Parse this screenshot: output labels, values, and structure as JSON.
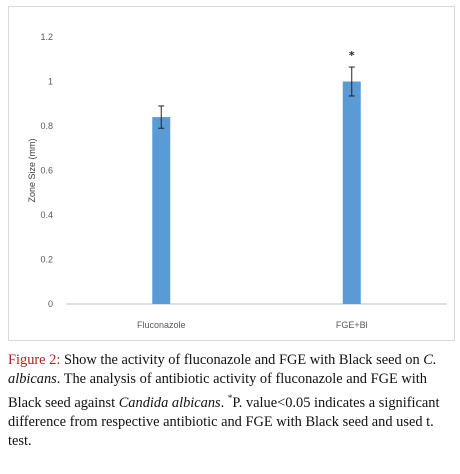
{
  "chart_data": {
    "type": "bar",
    "categories": [
      "Fluconazole",
      "FGE+Bl"
    ],
    "values": [
      0.84,
      1.0
    ],
    "errors": [
      0.05,
      0.065
    ],
    "significance": [
      "",
      "*"
    ],
    "ylabel": "Zone Size (mm)",
    "yticks": [
      "0",
      "0.2",
      "0.4",
      "0.6",
      "0.8",
      "1",
      "1.2"
    ],
    "ylim": [
      0,
      1.2
    ],
    "grid": false,
    "bar_color": "#5b9bd5"
  },
  "caption": {
    "label": "Figure 2:",
    "line1_rest": " Show the activity of fluconazole and FGE with Black seed on ",
    "species_short": "C. albicans",
    "text2": ". The analysis of antibiotic activity of fluconazole and FGE with Black seed against ",
    "species_full": "Candida albicans",
    "text3": ". ",
    "star": "*",
    "text4": "P. value<0.05 indicates a significant difference from respective antibiotic and FGE with Black seed and used t. test."
  }
}
